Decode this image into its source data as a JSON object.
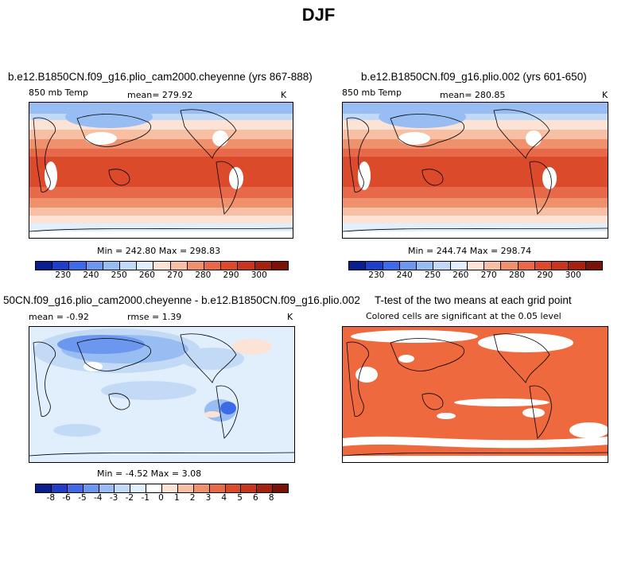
{
  "title": "DJF",
  "panels": [
    {
      "title": "b.e12.B1850CN.f09_g16.plio_cam2000.cheyenne (yrs 867-888)",
      "left_label": "850 mb Temp",
      "center_label": "mean=  279.92",
      "right_label": "K",
      "stats": "Min = 242.80 Max = 298.83",
      "colorbar_ticks": [
        "230",
        "240",
        "250",
        "260",
        "270",
        "280",
        "290",
        "300"
      ]
    },
    {
      "title": "b.e12.B1850CN.f09_g16.plio.002 (yrs 601-650)",
      "left_label": "850 mb Temp",
      "center_label": "mean=  280.85",
      "right_label": "K",
      "stats": "Min = 244.74 Max = 298.74",
      "colorbar_ticks": [
        "230",
        "240",
        "250",
        "260",
        "270",
        "280",
        "290",
        "300"
      ]
    },
    {
      "title": "50CN.f09_g16.plio_cam2000.cheyenne - b.e12.B1850CN.f09_g16.plio.002",
      "left_label": "mean =   -0.92",
      "center_label": "rmse =    1.39",
      "right_label": "K",
      "stats": "Min =  -4.52 Max =    3.08",
      "colorbar_ticks": [
        "-8",
        "-6",
        "-5",
        "-4",
        "-3",
        "-2",
        "-1",
        "0",
        "1",
        "2",
        "3",
        "4",
        "5",
        "6",
        "8"
      ]
    },
    {
      "title": "T-test of the two means at each grid point",
      "subtitle": "Colored cells are significant at the 0.05 level"
    }
  ],
  "colors": {
    "temp_scale": [
      "#0a1f8f",
      "#1f3fc9",
      "#3d6ae6",
      "#6b98ee",
      "#98bdf2",
      "#c3daf7",
      "#e1eefb",
      "#fde3d6",
      "#f7bfa3",
      "#f0916e",
      "#e8694a",
      "#dc4a2c",
      "#c9361f",
      "#a5220f",
      "#7a1208"
    ],
    "diff_scale": [
      "#0a1f8f",
      "#1f3fc9",
      "#3d6ae6",
      "#6b98ee",
      "#98bdf2",
      "#c3daf7",
      "#e1eefb",
      "#ffffff",
      "#fde3d6",
      "#f7bfa3",
      "#f0916e",
      "#e8694a",
      "#dc4a2c",
      "#c9361f",
      "#a5220f",
      "#7a1208"
    ],
    "significant": "#ee6a3e"
  }
}
